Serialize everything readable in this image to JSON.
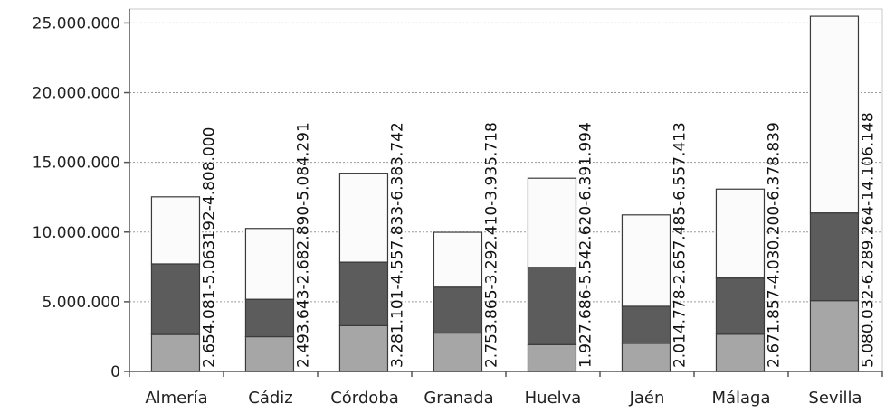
{
  "chart_data": {
    "type": "bar",
    "stacked": true,
    "title": "",
    "xlabel": "",
    "ylabel": "",
    "categories": [
      "Almería",
      "Cádiz",
      "Córdoba",
      "Granada",
      "Huelva",
      "Jaén",
      "Málaga",
      "Sevilla"
    ],
    "series": [
      {
        "values": [
          2654081,
          2493643,
          3281101,
          2753865,
          1927686,
          2014778,
          2671857,
          5080032
        ],
        "color": "#a6a6a6"
      },
      {
        "values": [
          5063192,
          2682890,
          4557833,
          3292410,
          5542620,
          2657485,
          4030200,
          6289264
        ],
        "color": "#5c5c5c"
      },
      {
        "values": [
          4808000,
          5084291,
          6383742,
          3935718,
          6391994,
          6557413,
          6378839,
          14106148
        ],
        "color": "#fbfbfb"
      }
    ],
    "data_labels": [
      "2.654.081-5.063192-4.808.000",
      "2.493.643-2.682.890-5.084.291",
      "3.281.101-4.557.833-6.383.742",
      "2.753.865-3.292.410-3.935.718",
      "1.927.686-5.542.620-6.391.994",
      "2.014.778-2.657.485-6.557.413",
      "2.671.857-4.030.200-6.378.839",
      "5.080.032-6.289.264-14.106.148"
    ],
    "y_ticks": [
      0,
      5000000,
      10000000,
      15000000,
      20000000,
      25000000
    ],
    "y_tick_labels": [
      "0",
      "5.000.000",
      "10.000.000",
      "15.000.000",
      "20.000.000",
      "25.000.000"
    ],
    "ylim": [
      0,
      26000000
    ],
    "grid": true,
    "legend": "none"
  }
}
